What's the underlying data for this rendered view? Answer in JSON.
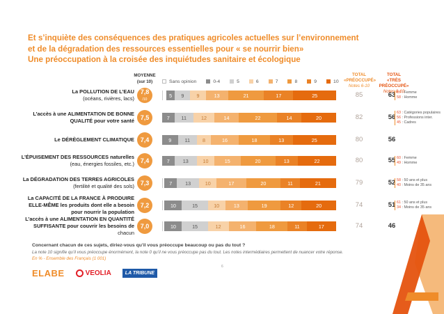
{
  "title_lines": [
    "Et s’inquiète des conséquences des pratiques agricoles actuelles sur l’environnement",
    "et de la  dégradation des ressources essentielles pour «  se nourrir bien»",
    "Une préoccupation à la croisée des inquiétudes sanitaire et écologique"
  ],
  "headers": {
    "moyenne": "MOYENNE",
    "moyenne_sub": "(sur 10)",
    "total_pre": "TOTAL",
    "total_pre_sub": "«PRÉOCCUPÉ»",
    "total_pre_notes": "Notes 6-10",
    "total_tres": "TOTAL",
    "total_tres_sub": "«TRÈS PRÉOCCUPÉ»",
    "total_tres_notes": "Notes 8-10"
  },
  "colors": {
    "title": "#ef8c2a",
    "circle": "#ef9a3f",
    "segments": [
      "#d9d9d9",
      "#8c8c8c",
      "#6b6b6b",
      "#f6c28f",
      "#f3ac64",
      "#ef9a3f",
      "#ec8a2d",
      "#e9791c",
      "#e6690c"
    ]
  },
  "chart_data": {
    "type": "bar",
    "stacked": true,
    "orientation": "horizontal",
    "legend": [
      "Sans opinion",
      "0-4",
      "5",
      "6",
      "7",
      "8",
      "9",
      "10"
    ],
    "rows": [
      {
        "label_main": "La POLLUTION DE L’EAU",
        "label_sub": "(océans, rivières, lacs)",
        "mean": "7,8",
        "mean_sub": "/10",
        "values": [
          2,
          5,
          9,
          9,
          13,
          21,
          17,
          25
        ],
        "total_pre": "85",
        "total_tres": "63",
        "detail": [
          [
            "67",
            " : Femme"
          ],
          [
            "58",
            " : Homme"
          ]
        ]
      },
      {
        "label_main": "L’accès à une ALIMENTATION DE BONNE",
        "label_main2": "QUALITÉ pour votre santé",
        "mean": "7,5",
        "values": [
          0,
          7,
          11,
          12,
          14,
          22,
          14,
          20
        ],
        "total_pre": "82",
        "total_tres": "56",
        "detail": [
          [
            "63",
            " : Catégories populaires"
          ],
          [
            "56",
            " : Professions inter."
          ],
          [
            "45",
            " : Cadres"
          ]
        ]
      },
      {
        "label_main": "Le DÉRÈGLEMENT CLIMATIQUE",
        "mean": "7,4",
        "values": [
          0,
          9,
          11,
          8,
          16,
          18,
          13,
          25
        ],
        "total_pre": "80",
        "total_tres": "56",
        "detail": []
      },
      {
        "label_main": "L’ÉPUISEMENT DES RESSOURCES naturelles",
        "label_sub": "(eau, énergies fossiles, etc.)",
        "mean": "7,4",
        "values": [
          0,
          7,
          13,
          10,
          15,
          20,
          13,
          22
        ],
        "total_pre": "80",
        "total_tres": "55",
        "detail": [
          [
            "60",
            " : Femme"
          ],
          [
            "49",
            " : Homme"
          ]
        ]
      },
      {
        "label_main": "La DÉGRADATION DES TERRES AGRICOLES",
        "label_sub": "(fertilité et qualité des sols)",
        "mean": "7,3",
        "values": [
          1,
          7,
          13,
          10,
          17,
          20,
          11,
          21
        ],
        "total_pre": "79",
        "total_tres": "52",
        "detail": [
          [
            "58",
            " : 50 ans et plus"
          ],
          [
            "40",
            " : Moins de 35 ans"
          ]
        ]
      },
      {
        "label_main": "La CAPACITÉ DE LA FRANCE À PRODUIRE",
        "label_main2": "ELLE-MÊME les produits dont elle a besoin",
        "label_main3": "pour nourrir la population",
        "mean": "7,2",
        "values": [
          1,
          10,
          15,
          10,
          13,
          19,
          12,
          20
        ],
        "total_pre": "74",
        "total_tres": "51",
        "detail": [
          [
            "61",
            " : 50 ans et plus"
          ],
          [
            "34",
            " : Moins de 35 ans"
          ]
        ]
      },
      {
        "label_main": "L’accès à une ALIMENTATION EN QUANTITÉ",
        "label_main2": "SUFFISANTE pour couvrir les besoins de",
        "label_sub": "chacun",
        "mean": "7,0",
        "values": [
          1,
          10,
          15,
          12,
          16,
          18,
          11,
          17
        ],
        "total_pre": "74",
        "total_tres": "46",
        "detail": []
      }
    ]
  },
  "legend_numbers": [
    "0-4",
    "5",
    "6",
    "7",
    "8",
    "9",
    "10"
  ],
  "footer": {
    "question": "Concernant chacun de ces sujets, diriez-vous qu’il vous préoccupe beaucoup ou pas du tout ?",
    "note": "La note 10 signifie qu’il vous préoccupe énormément, la note 0 qu’il ne vous préoccupe pas du tout. Les notes intermédiaires permettent de nuancer votre réponse.",
    "base": "En % - Ensemble des Français (1 001)",
    "page": "6",
    "logo_elabe": "ELABE",
    "logo_veolia": "VEOLIA",
    "logo_tribune": "LA TRIBUNE"
  }
}
